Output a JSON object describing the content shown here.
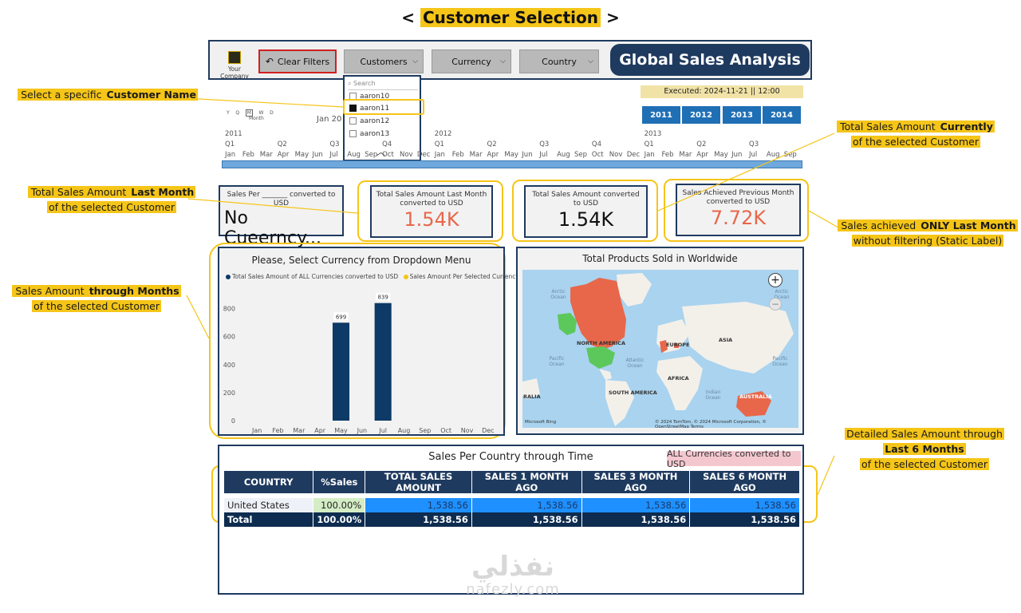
{
  "title": {
    "prefix": "<",
    "text": "Customer Selection",
    "suffix": ">"
  },
  "header": {
    "logo_text": "Your Company",
    "clear_filters": "Clear Filters",
    "customers": "Customers",
    "currency": "Currency",
    "country": "Country",
    "report_title": "Global Sales Analysis"
  },
  "dropdown": {
    "search_placeholder": "Search",
    "items": [
      {
        "label": "aaron10",
        "checked": false
      },
      {
        "label": "aaron11",
        "checked": true
      },
      {
        "label": "aaron12",
        "checked": false
      },
      {
        "label": "aaron13",
        "checked": false
      }
    ]
  },
  "executed": "Executed: 2024-11-21  ||  12:00",
  "years": [
    "2011",
    "2012",
    "2013",
    "2014"
  ],
  "timeline": {
    "modes": [
      "Y",
      "Q",
      "M",
      "W",
      "D"
    ],
    "mode_selected": "Month",
    "current_label": "Jan 20",
    "years": [
      "2011",
      "2012",
      "2013"
    ],
    "quarters": [
      "Q1",
      "Q2",
      "Q3",
      "Q4",
      "Q1",
      "Q2",
      "Q3",
      "Q4",
      "Q1",
      "Q2",
      "Q3"
    ],
    "months": [
      "Jan",
      "Feb",
      "Mar",
      "Apr",
      "May",
      "Jun",
      "Jul",
      "Aug",
      "Sep",
      "Oct",
      "Nov",
      "Dec",
      "Jan",
      "Feb",
      "Mar",
      "Apr",
      "May",
      "Jun",
      "Jul",
      "Aug",
      "Sep",
      "Oct",
      "Nov",
      "Dec",
      "Jan",
      "Feb",
      "Mar",
      "Apr",
      "May",
      "Jun",
      "Jul",
      "Aug",
      "Sep"
    ]
  },
  "cards": {
    "per_currency": {
      "label": "Sales Per _______ converted to USD",
      "value": "No Cueerncy..."
    },
    "last_month": {
      "label": "Total Sales Amount Last Month converted to USD",
      "value": "1.54K"
    },
    "total": {
      "label": "Total Sales Amount converted to USD",
      "value": "1.54K"
    },
    "prev_month": {
      "label": "Sales Achieved Previous Month converted to USD",
      "value": "7.72K"
    }
  },
  "notes": {
    "n1": {
      "pre": "Select a specific ",
      "bold": "Customer Name",
      "post": ""
    },
    "n2": {
      "l1_pre": "Total Sales Amount  ",
      "l1_bold": "Last Month",
      "l2": "of the selected Customer"
    },
    "n3": {
      "l1_pre": "Sales Amount  ",
      "l1_bold": "through Months",
      "l2": "of the selected Customer"
    },
    "n4": {
      "l1_pre": "Total Sales Amount  ",
      "l1_bold": "Currently",
      "l2": "of the selected Customer"
    },
    "n5": {
      "l1_pre": "Sales achieved ",
      "l1_bold": "ONLY Last Month",
      "l2": "without  filtering (Static Label)"
    },
    "n6": {
      "l1": "Detailed Sales Amount  through",
      "l2_bold": "Last 6 Months",
      "l3": "of the selected Customer"
    }
  },
  "chart_data": {
    "type": "bar",
    "title": "Please, Select Currency from Dropdown Menu",
    "legend": [
      "Total Sales Amount of ALL Currencies converted to USD",
      "Sales Amount Per Selected Currency"
    ],
    "legend_colors": [
      "#0d3a66",
      "#f5c518"
    ],
    "categories": [
      "Jan",
      "Feb",
      "Mar",
      "Apr",
      "May",
      "Jun",
      "Jul",
      "Aug",
      "Sep",
      "Oct",
      "Nov",
      "Dec"
    ],
    "series": [
      {
        "name": "Total Sales Amount of ALL Currencies converted to USD",
        "values": [
          0,
          0,
          0,
          0,
          699,
          0,
          839,
          0,
          0,
          0,
          0,
          0
        ]
      }
    ],
    "data_labels": [
      "",
      "",
      "",
      "",
      "699",
      "",
      "839",
      "",
      "",
      "",
      "",
      ""
    ],
    "ylim": [
      0,
      900
    ],
    "yticks": [
      0,
      200,
      400,
      600,
      800
    ],
    "bar_color": "#0d3a66"
  },
  "map": {
    "title": "Total Products Sold in Worldwide",
    "labels": [
      "NORTH AMERICA",
      "EUROPE",
      "ASIA",
      "AFRICA",
      "SOUTH AMERICA",
      "AUSTRALIA",
      "RALIA"
    ],
    "oceans": [
      "Arctic Ocean",
      "Arctic Ocean",
      "Pacific Ocean",
      "Atlantic Ocean",
      "Pacific Ocean",
      "Indian Ocean"
    ],
    "footer": "© 2024 TomTom, © 2024 Microsoft Corporation, © OpenStreetMap  Terms",
    "bing": "Microsoft Bing"
  },
  "table": {
    "title": "Sales Per Country through Time",
    "badge": "ALL Currencies converted to USD",
    "columns": [
      "COUNTRY",
      "%Sales",
      "TOTAL SALES AMOUNT",
      "SALES 1 MONTH AGO",
      "SALES 3 MONTH AGO",
      "SALES 6 MONTH AGO"
    ],
    "rows": [
      [
        "United States",
        "100.00%",
        "1,538.56",
        "1,538.56",
        "1,538.56",
        "1,538.56"
      ]
    ],
    "total": [
      "Total",
      "100.00%",
      "1,538.56",
      "1,538.56",
      "1,538.56",
      "1,538.56"
    ]
  },
  "watermark": {
    "arabic": "نفذلي",
    "latin": "nafezly.com"
  }
}
